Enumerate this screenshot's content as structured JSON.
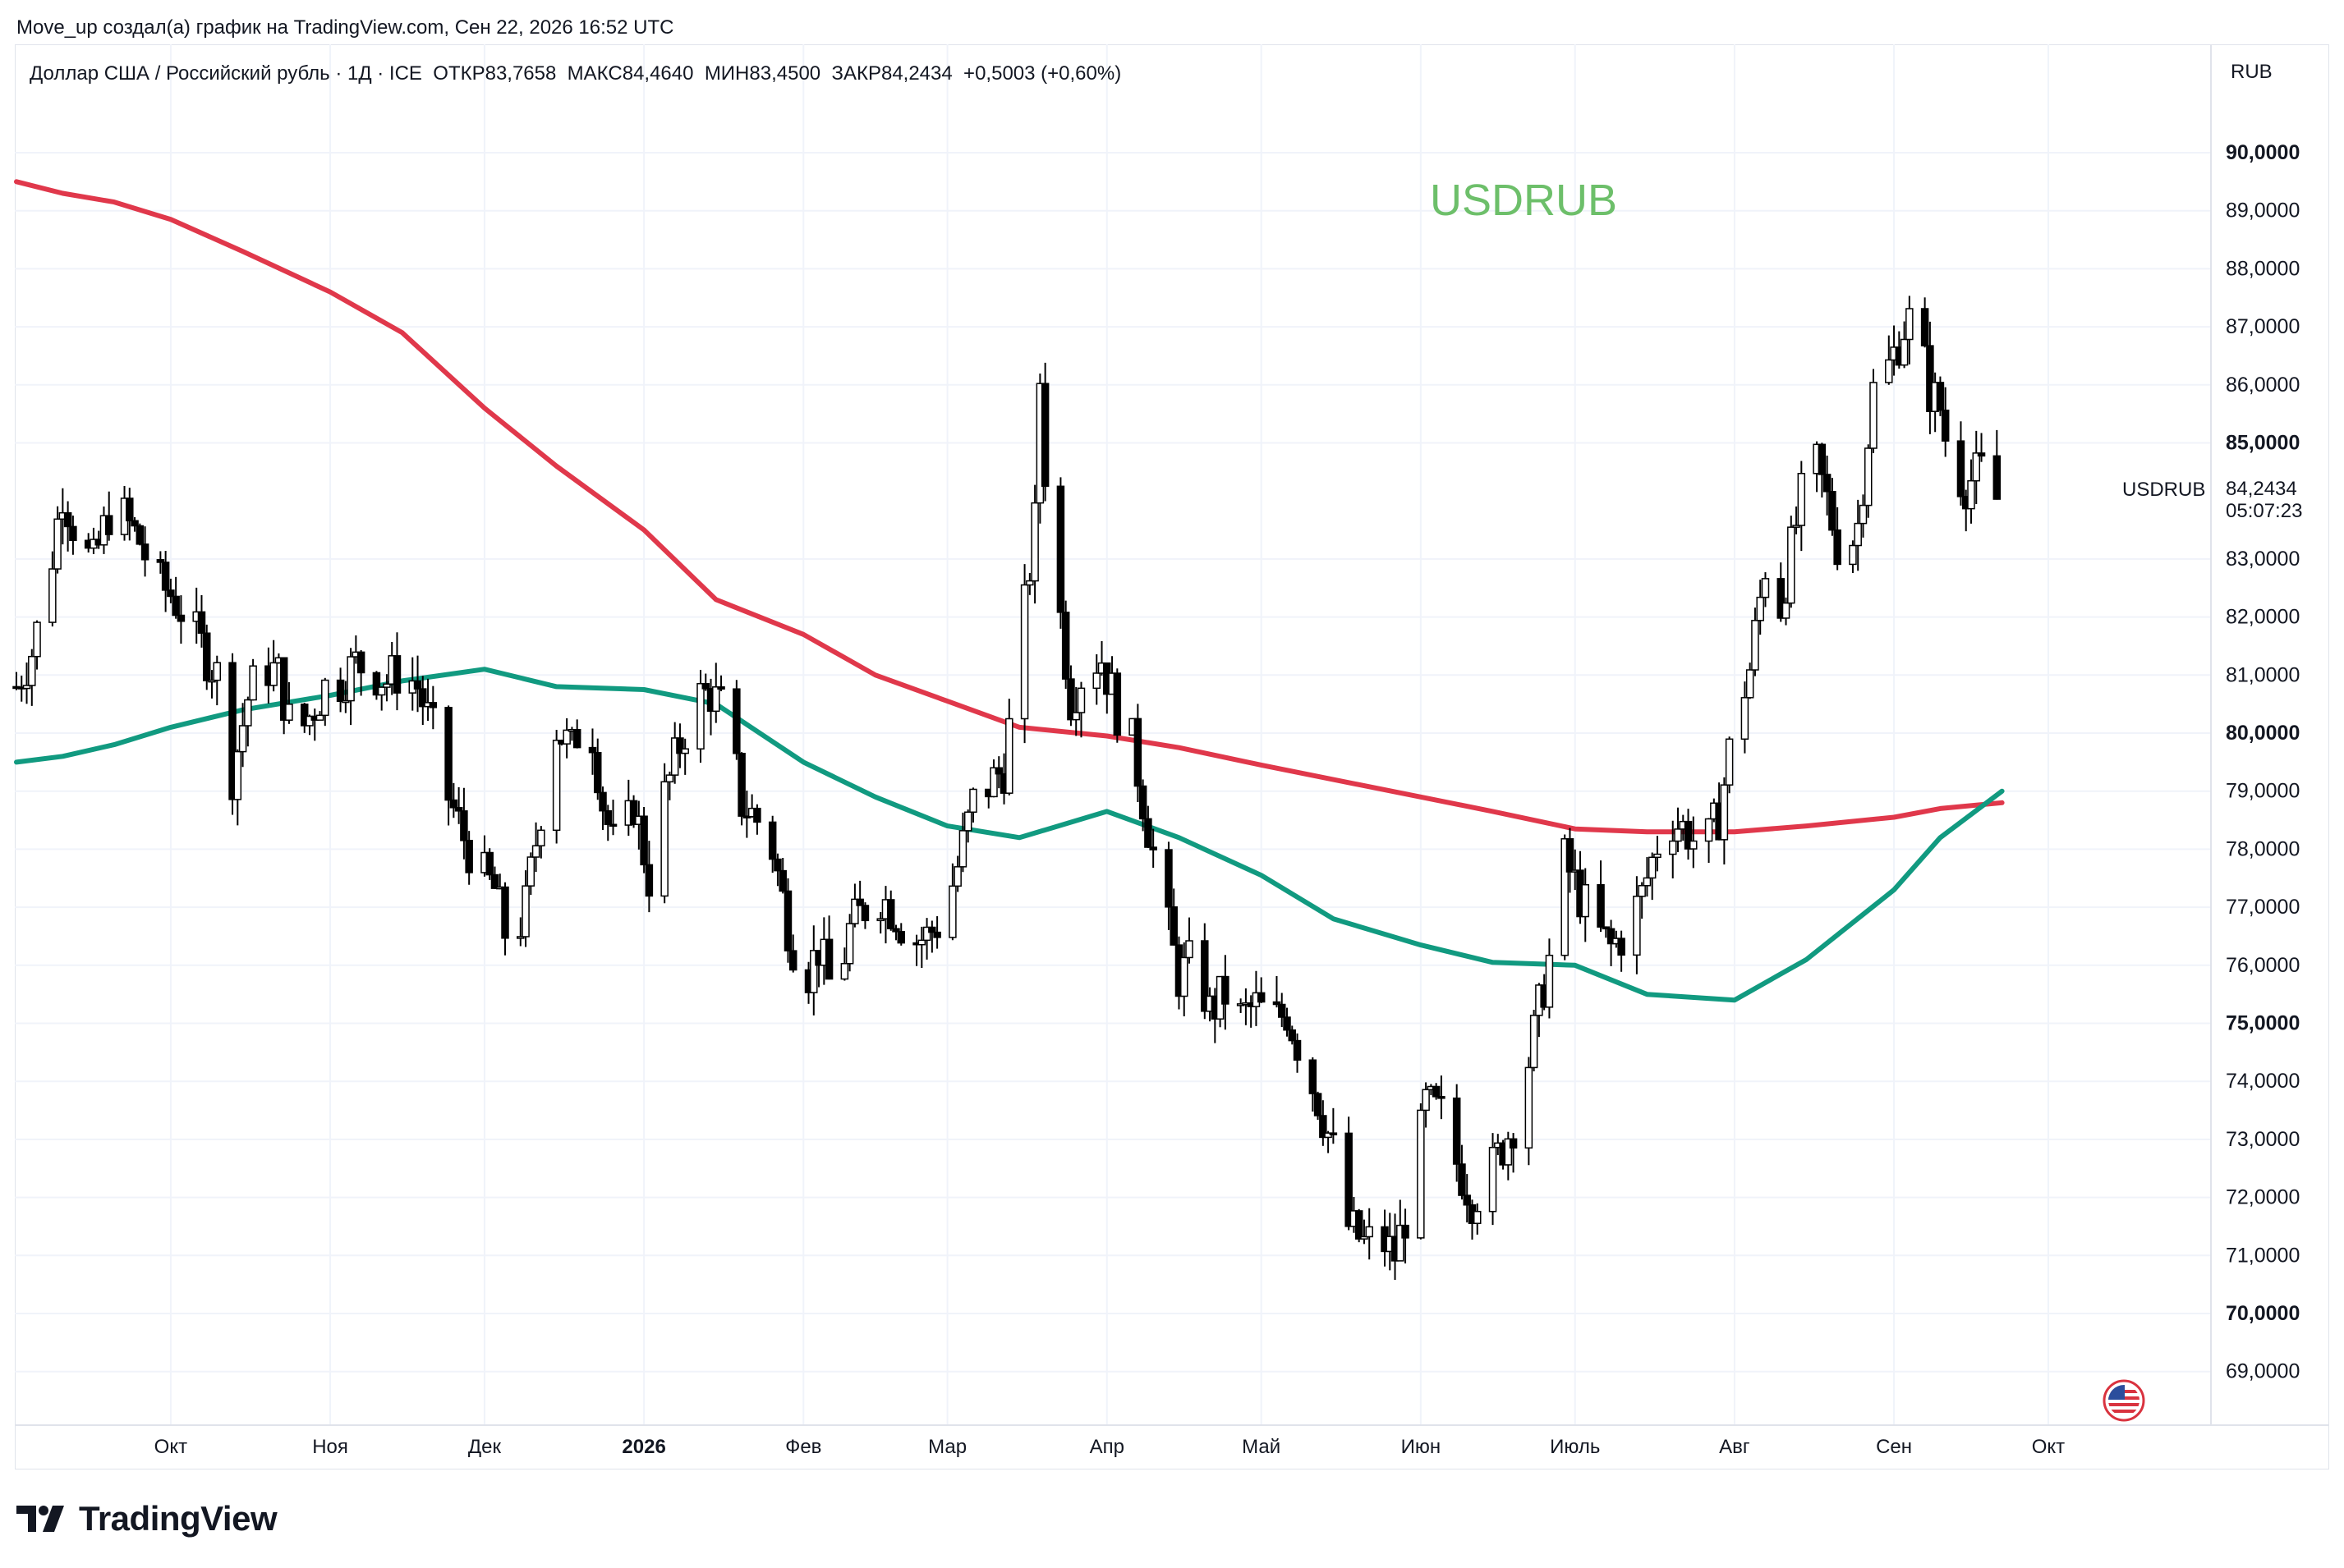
{
  "header": {
    "credit": "Move_up создал(а) график на TradingView.com, Сен 22, 2026 16:52 UTC",
    "symbol_info": "Доллар США / Российский рубль · 1Д · ICE  ОТКР83,7658  МАКС84,4640  МИН83,4500  ЗАКР84,2434  +0,5003 (+0,60%)",
    "currency": "RUB"
  },
  "watermark": "USDRUB",
  "last_price": {
    "symbol": "USDRUB",
    "price": "84,2434",
    "countdown": "05:07:23",
    "value": 84.2434
  },
  "logo": {
    "text": "TradingView",
    "icon": "tradingview-logo-icon"
  },
  "flag_icon": "us-flag-icon",
  "colors": {
    "up": "#ffffff",
    "down": "#000000",
    "ma_red": "#e0384b",
    "ma_green": "#119a80",
    "watermark": "#6dbf6a",
    "grid": "#f0f3fa",
    "text": "#131722"
  },
  "chart_data": {
    "type": "candlestick",
    "title": "",
    "ylim": [
      68.0,
      91.0
    ],
    "y_ticks": [
      {
        "v": 69,
        "label": "69,0000",
        "bold": false
      },
      {
        "v": 70,
        "label": "70,0000",
        "bold": true
      },
      {
        "v": 71,
        "label": "71,0000",
        "bold": false
      },
      {
        "v": 72,
        "label": "72,0000",
        "bold": false
      },
      {
        "v": 73,
        "label": "73,0000",
        "bold": false
      },
      {
        "v": 74,
        "label": "74,0000",
        "bold": false
      },
      {
        "v": 75,
        "label": "75,0000",
        "bold": true
      },
      {
        "v": 76,
        "label": "76,0000",
        "bold": false
      },
      {
        "v": 77,
        "label": "77,0000",
        "bold": false
      },
      {
        "v": 78,
        "label": "78,0000",
        "bold": false
      },
      {
        "v": 79,
        "label": "79,0000",
        "bold": false
      },
      {
        "v": 80,
        "label": "80,0000",
        "bold": true
      },
      {
        "v": 81,
        "label": "81,0000",
        "bold": false
      },
      {
        "v": 82,
        "label": "82,0000",
        "bold": false
      },
      {
        "v": 83,
        "label": "83,0000",
        "bold": false
      },
      {
        "v": 85,
        "label": "85,0000",
        "bold": true
      },
      {
        "v": 86,
        "label": "86,0000",
        "bold": false
      },
      {
        "v": 87,
        "label": "87,0000",
        "bold": false
      },
      {
        "v": 88,
        "label": "88,0000",
        "bold": false
      },
      {
        "v": 89,
        "label": "89,0000",
        "bold": false
      },
      {
        "v": 90,
        "label": "90,0000",
        "bold": true
      }
    ],
    "x_ticks": [
      {
        "label": "Окт",
        "date": "2025-10-01",
        "bold": false
      },
      {
        "label": "Ноя",
        "date": "2025-11-01",
        "bold": false
      },
      {
        "label": "Дек",
        "date": "2025-12-01",
        "bold": false
      },
      {
        "label": "2026",
        "date": "2026-01-01",
        "bold": true
      },
      {
        "label": "Фев",
        "date": "2026-02-01",
        "bold": false
      },
      {
        "label": "Мар",
        "date": "2026-03-01",
        "bold": false
      },
      {
        "label": "Апр",
        "date": "2026-04-01",
        "bold": false
      },
      {
        "label": "Май",
        "date": "2026-05-01",
        "bold": false
      },
      {
        "label": "Июн",
        "date": "2026-06-01",
        "bold": false
      },
      {
        "label": "Июль",
        "date": "2026-07-01",
        "bold": false
      },
      {
        "label": "Авг",
        "date": "2026-08-01",
        "bold": false
      },
      {
        "label": "Сен",
        "date": "2026-09-01",
        "bold": false
      },
      {
        "label": "Окт",
        "date": "2026-10-01",
        "bold": false
      }
    ],
    "xlim": [
      "2025-09-01",
      "2026-10-24"
    ],
    "close_points": [
      [
        "2025-09-01",
        80.8
      ],
      [
        "2025-09-04",
        81.4
      ],
      [
        "2025-09-07",
        82.5
      ],
      [
        "2025-09-10",
        84.2
      ],
      [
        "2025-09-13",
        83.3
      ],
      [
        "2025-09-16",
        82.9
      ],
      [
        "2025-09-19",
        83.8
      ],
      [
        "2025-09-22",
        83.7
      ],
      [
        "2025-09-25",
        83.3
      ],
      [
        "2025-09-28",
        82.6
      ],
      [
        "2025-10-01",
        82.4
      ],
      [
        "2025-10-04",
        82.0
      ],
      [
        "2025-10-07",
        81.5
      ],
      [
        "2025-10-10",
        81.0
      ],
      [
        "2025-10-13",
        79.3
      ],
      [
        "2025-10-16",
        80.6
      ],
      [
        "2025-10-19",
        81.2
      ],
      [
        "2025-10-22",
        81.0
      ],
      [
        "2025-10-25",
        79.8
      ],
      [
        "2025-10-28",
        80.3
      ],
      [
        "2025-10-31",
        80.8
      ],
      [
        "2025-11-03",
        80.9
      ],
      [
        "2025-11-06",
        81.2
      ],
      [
        "2025-11-09",
        81.1
      ],
      [
        "2025-11-12",
        80.9
      ],
      [
        "2025-11-15",
        81.1
      ],
      [
        "2025-11-18",
        80.8
      ],
      [
        "2025-11-21",
        80.0
      ],
      [
        "2025-11-24",
        78.9
      ],
      [
        "2025-11-27",
        78.2
      ],
      [
        "2025-11-30",
        77.6
      ],
      [
        "2025-12-03",
        77.3
      ],
      [
        "2025-12-06",
        76.2
      ],
      [
        "2025-12-09",
        77.0
      ],
      [
        "2025-12-12",
        78.7
      ],
      [
        "2025-12-15",
        80.1
      ],
      [
        "2025-12-18",
        79.7
      ],
      [
        "2025-12-21",
        80.6
      ],
      [
        "2025-12-24",
        78.8
      ],
      [
        "2025-12-27",
        77.7
      ],
      [
        "2025-12-30",
        78.8
      ],
      [
        "2026-01-02",
        77.5
      ],
      [
        "2026-01-05",
        78.9
      ],
      [
        "2026-01-08",
        79.8
      ],
      [
        "2026-01-11",
        80.6
      ],
      [
        "2026-01-14",
        80.7
      ],
      [
        "2026-01-17",
        80.3
      ],
      [
        "2026-01-20",
        78.8
      ],
      [
        "2026-01-23",
        78.5
      ],
      [
        "2026-01-26",
        78.0
      ],
      [
        "2026-01-29",
        76.7
      ],
      [
        "2026-02-01",
        75.7
      ],
      [
        "2026-02-04",
        76.3
      ],
      [
        "2026-02-07",
        75.4
      ],
      [
        "2026-02-10",
        76.6
      ],
      [
        "2026-02-13",
        77.0
      ],
      [
        "2026-02-16",
        77.2
      ],
      [
        "2026-02-19",
        76.9
      ],
      [
        "2026-02-22",
        76.4
      ],
      [
        "2026-02-25",
        76.5
      ],
      [
        "2026-02-28",
        76.8
      ],
      [
        "2026-03-03",
        77.7
      ],
      [
        "2026-03-06",
        78.8
      ],
      [
        "2026-03-09",
        79.1
      ],
      [
        "2026-03-12",
        79.4
      ],
      [
        "2026-03-15",
        81.4
      ],
      [
        "2026-03-18",
        83.6
      ],
      [
        "2026-03-19",
        86.1
      ],
      [
        "2026-03-21",
        83.0
      ],
      [
        "2026-03-23",
        82.0
      ],
      [
        "2026-03-25",
        80.6
      ],
      [
        "2026-03-28",
        81.2
      ],
      [
        "2026-03-31",
        81.3
      ],
      [
        "2026-04-03",
        80.4
      ],
      [
        "2026-04-06",
        79.8
      ],
      [
        "2026-04-09",
        78.4
      ],
      [
        "2026-04-12",
        77.0
      ],
      [
        "2026-04-15",
        75.8
      ],
      [
        "2026-04-18",
        76.1
      ],
      [
        "2026-04-21",
        75.2
      ],
      [
        "2026-04-24",
        75.5
      ],
      [
        "2026-04-27",
        75.1
      ],
      [
        "2026-04-30",
        75.3
      ],
      [
        "2026-05-03",
        75.0
      ],
      [
        "2026-05-06",
        75.2
      ],
      [
        "2026-05-09",
        74.4
      ],
      [
        "2026-05-12",
        73.7
      ],
      [
        "2026-05-15",
        72.8
      ],
      [
        "2026-05-18",
        71.5
      ],
      [
        "2026-05-21",
        71.2
      ],
      [
        "2026-05-24",
        71.3
      ],
      [
        "2026-05-27",
        71.0
      ],
      [
        "2026-05-30",
        72.0
      ],
      [
        "2026-06-02",
        73.6
      ],
      [
        "2026-06-05",
        73.4
      ],
      [
        "2026-06-08",
        72.6
      ],
      [
        "2026-06-11",
        72.0
      ],
      [
        "2026-06-14",
        72.3
      ],
      [
        "2026-06-17",
        72.9
      ],
      [
        "2026-06-20",
        73.5
      ],
      [
        "2026-06-23",
        74.8
      ],
      [
        "2026-06-26",
        76.1
      ],
      [
        "2026-06-27",
        78.6
      ],
      [
        "2026-06-29",
        77.8
      ],
      [
        "2026-07-02",
        77.2
      ],
      [
        "2026-07-05",
        76.6
      ],
      [
        "2026-07-08",
        76.3
      ],
      [
        "2026-07-11",
        76.6
      ],
      [
        "2026-07-14",
        77.2
      ],
      [
        "2026-07-17",
        78.1
      ],
      [
        "2026-07-20",
        78.5
      ],
      [
        "2026-07-23",
        78.3
      ],
      [
        "2026-07-26",
        77.9
      ],
      [
        "2026-07-29",
        78.6
      ],
      [
        "2026-08-01",
        80.2
      ],
      [
        "2026-08-04",
        81.1
      ],
      [
        "2026-08-07",
        82.9
      ],
      [
        "2026-08-10",
        82.2
      ],
      [
        "2026-08-13",
        83.6
      ],
      [
        "2026-08-16",
        84.9
      ],
      [
        "2026-08-19",
        84.0
      ],
      [
        "2026-08-22",
        82.9
      ],
      [
        "2026-08-25",
        83.6
      ],
      [
        "2026-08-28",
        85.9
      ],
      [
        "2026-08-31",
        86.3
      ],
      [
        "2026-09-03",
        87.0
      ],
      [
        "2026-09-05",
        87.2
      ],
      [
        "2026-09-08",
        85.9
      ],
      [
        "2026-09-10",
        85.6
      ],
      [
        "2026-09-12",
        84.6
      ],
      [
        "2026-09-15",
        84.3
      ],
      [
        "2026-09-18",
        84.5
      ],
      [
        "2026-09-20",
        83.8
      ],
      [
        "2026-09-22",
        84.2434
      ]
    ],
    "ma_red": [
      [
        "2025-09-01",
        89.5
      ],
      [
        "2025-09-10",
        89.3
      ],
      [
        "2025-09-20",
        89.15
      ],
      [
        "2025-10-01",
        88.85
      ],
      [
        "2025-10-15",
        88.3
      ],
      [
        "2025-11-01",
        87.6
      ],
      [
        "2025-11-15",
        86.9
      ],
      [
        "2025-12-01",
        85.6
      ],
      [
        "2025-12-15",
        84.6
      ],
      [
        "2026-01-01",
        83.5
      ],
      [
        "2026-01-15",
        82.3
      ],
      [
        "2026-02-01",
        81.7
      ],
      [
        "2026-02-15",
        81.0
      ],
      [
        "2026-03-01",
        80.55
      ],
      [
        "2026-03-15",
        80.1
      ],
      [
        "2026-04-01",
        79.95
      ],
      [
        "2026-04-15",
        79.75
      ],
      [
        "2026-05-01",
        79.45
      ],
      [
        "2026-05-15",
        79.2
      ],
      [
        "2026-06-01",
        78.9
      ],
      [
        "2026-06-15",
        78.65
      ],
      [
        "2026-07-01",
        78.35
      ],
      [
        "2026-07-15",
        78.3
      ],
      [
        "2026-08-01",
        78.3
      ],
      [
        "2026-08-15",
        78.4
      ],
      [
        "2026-09-01",
        78.55
      ],
      [
        "2026-09-10",
        78.7
      ],
      [
        "2026-09-22",
        78.8
      ]
    ],
    "ma_green": [
      [
        "2025-09-01",
        79.5
      ],
      [
        "2025-09-10",
        79.6
      ],
      [
        "2025-09-20",
        79.8
      ],
      [
        "2025-10-01",
        80.1
      ],
      [
        "2025-10-15",
        80.4
      ],
      [
        "2025-11-01",
        80.65
      ],
      [
        "2025-11-15",
        80.9
      ],
      [
        "2025-12-01",
        81.1
      ],
      [
        "2025-12-15",
        80.8
      ],
      [
        "2026-01-01",
        80.75
      ],
      [
        "2026-01-15",
        80.5
      ],
      [
        "2026-02-01",
        79.5
      ],
      [
        "2026-02-15",
        78.9
      ],
      [
        "2026-03-01",
        78.4
      ],
      [
        "2026-03-15",
        78.2
      ],
      [
        "2026-04-01",
        78.65
      ],
      [
        "2026-04-15",
        78.2
      ],
      [
        "2026-05-01",
        77.55
      ],
      [
        "2026-05-15",
        76.8
      ],
      [
        "2026-06-01",
        76.35
      ],
      [
        "2026-06-15",
        76.05
      ],
      [
        "2026-07-01",
        76.0
      ],
      [
        "2026-07-15",
        75.5
      ],
      [
        "2026-08-01",
        75.4
      ],
      [
        "2026-08-15",
        76.1
      ],
      [
        "2026-09-01",
        77.3
      ],
      [
        "2026-09-10",
        78.2
      ],
      [
        "2026-09-22",
        79.0
      ]
    ]
  }
}
